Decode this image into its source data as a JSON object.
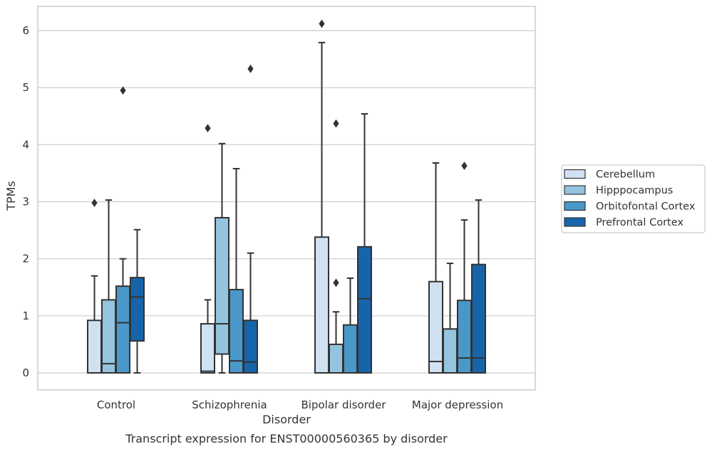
{
  "caption": "Transcript expression for ENST00000560365 by disorder",
  "colors": {
    "Cerebellum": "#d0e1f2",
    "Hipppocampus": "#94c4df",
    "Orbitofontal Cortex": "#4a98c9",
    "Prefrontal Cortex": "#1764ab",
    "box_edge": "#333333",
    "grid": "#cccccc",
    "frame": "#cccccc"
  },
  "chart_data": {
    "type": "boxplot",
    "title": "",
    "xlabel": "Disorder",
    "ylabel": "TPMs",
    "ylim": [
      -0.3,
      6.4
    ],
    "yticks": [
      0,
      1,
      2,
      3,
      4,
      5,
      6
    ],
    "grid": "horizontal",
    "legend_position": "right",
    "categories": [
      "Control",
      "Schizophrenia",
      "Bipolar disorder",
      "Major depression"
    ],
    "series": [
      {
        "name": "Cerebellum",
        "boxes": [
          {
            "q1": 0,
            "median": 0,
            "q3": 0.92,
            "whisker_low": 0,
            "whisker_high": 1.7,
            "outliers": [
              2.98
            ]
          },
          {
            "q1": 0,
            "median": 0.03,
            "q3": 0.86,
            "whisker_low": 0,
            "whisker_high": 1.28,
            "outliers": [
              4.29
            ]
          },
          {
            "q1": 0,
            "median": 0,
            "q3": 2.38,
            "whisker_low": 0,
            "whisker_high": 5.79,
            "outliers": [
              6.12
            ]
          },
          {
            "q1": 0,
            "median": 0.2,
            "q3": 1.6,
            "whisker_low": 0,
            "whisker_high": 3.68,
            "outliers": []
          }
        ]
      },
      {
        "name": "Hipppocampus",
        "boxes": [
          {
            "q1": 0,
            "median": 0.16,
            "q3": 1.28,
            "whisker_low": 0,
            "whisker_high": 3.03,
            "outliers": []
          },
          {
            "q1": 0.33,
            "median": 0.86,
            "q3": 2.72,
            "whisker_low": 0,
            "whisker_high": 4.02,
            "outliers": []
          },
          {
            "q1": 0,
            "median": 0,
            "q3": 0.5,
            "whisker_low": 0,
            "whisker_high": 1.07,
            "outliers": [
              1.58,
              4.37
            ]
          },
          {
            "q1": 0,
            "median": 0,
            "q3": 0.77,
            "whisker_low": 0,
            "whisker_high": 1.92,
            "outliers": []
          }
        ]
      },
      {
        "name": "Orbitofontal Cortex",
        "boxes": [
          {
            "q1": 0,
            "median": 0.88,
            "q3": 1.52,
            "whisker_low": 0,
            "whisker_high": 2.0,
            "outliers": [
              4.95
            ]
          },
          {
            "q1": 0,
            "median": 0.21,
            "q3": 1.46,
            "whisker_low": 0,
            "whisker_high": 3.58,
            "outliers": []
          },
          {
            "q1": 0,
            "median": 0,
            "q3": 0.84,
            "whisker_low": 0,
            "whisker_high": 1.66,
            "outliers": []
          },
          {
            "q1": 0,
            "median": 0.26,
            "q3": 1.27,
            "whisker_low": 0,
            "whisker_high": 2.68,
            "outliers": [
              3.63
            ]
          }
        ]
      },
      {
        "name": "Prefrontal Cortex",
        "boxes": [
          {
            "q1": 0.56,
            "median": 1.33,
            "q3": 1.67,
            "whisker_low": 0,
            "whisker_high": 2.51,
            "outliers": []
          },
          {
            "q1": 0,
            "median": 0.19,
            "q3": 0.92,
            "whisker_low": 0,
            "whisker_high": 2.1,
            "outliers": [
              5.33
            ]
          },
          {
            "q1": 0,
            "median": 1.3,
            "q3": 2.21,
            "whisker_low": 0,
            "whisker_high": 4.54,
            "outliers": []
          },
          {
            "q1": 0,
            "median": 0.26,
            "q3": 1.9,
            "whisker_low": 0,
            "whisker_high": 3.03,
            "outliers": []
          }
        ]
      }
    ]
  }
}
